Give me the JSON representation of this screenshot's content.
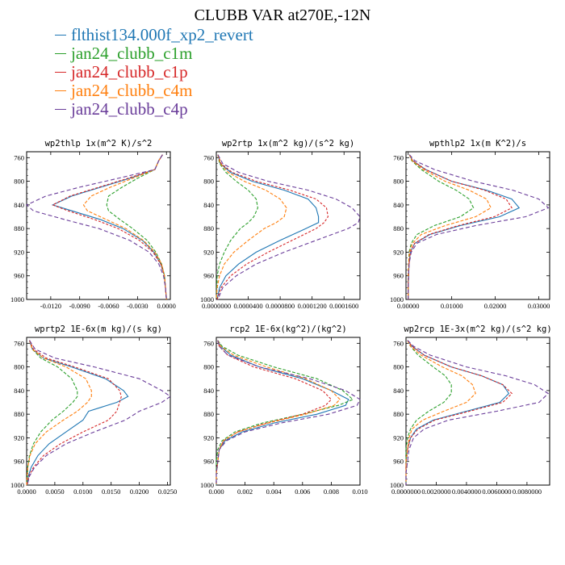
{
  "title": "CLUBB VAR at270E,-12N",
  "legend": [
    {
      "label": "flthist134.000f_xp2_revert",
      "color": "#1f77b4",
      "dash": ""
    },
    {
      "label": "jan24_clubb_c1m",
      "color": "#2ca02c",
      "dash": "4,2"
    },
    {
      "label": "jan24_clubb_c1p",
      "color": "#d62728",
      "dash": "3,2"
    },
    {
      "label": "jan24_clubb_c4m",
      "color": "#ff7f0e",
      "dash": "4,2"
    },
    {
      "label": "jan24_clubb_c4p",
      "color": "#6a3d9a",
      "dash": "5,3"
    }
  ],
  "chart_data": [
    {
      "type": "line",
      "title": "wp2thlp   1x(m^2 K)/s^2",
      "xlim": [
        -0.0145,
        0.0004
      ],
      "ylim": [
        1000,
        750
      ],
      "xticks": [
        -0.012,
        -0.009,
        -0.006,
        -0.003,
        0.0
      ],
      "xtick_labels": [
        "-0.0120",
        "-0.0090",
        "-0.0060",
        "-0.0030",
        "0.0000"
      ],
      "yticks": [
        760,
        800,
        840,
        880,
        920,
        960,
        1000
      ],
      "y": [
        755,
        765,
        780,
        795,
        810,
        825,
        840,
        850,
        865,
        880,
        900,
        920,
        940,
        960,
        980,
        1000
      ],
      "series": [
        {
          "name": "flthist134.000f_xp2_revert",
          "x": [
            -0.0004,
            -0.0008,
            -0.0012,
            -0.0038,
            -0.0068,
            -0.0098,
            -0.0118,
            -0.0098,
            -0.0068,
            -0.0045,
            -0.0025,
            -0.0013,
            -0.0006,
            -0.0002,
            -0.0001,
            0.0
          ]
        },
        {
          "name": "jan24_clubb_c1m",
          "x": [
            -0.0004,
            -0.0008,
            -0.0012,
            -0.003,
            -0.0046,
            -0.006,
            -0.0062,
            -0.006,
            -0.0048,
            -0.0035,
            -0.002,
            -0.0011,
            -0.0005,
            -0.0002,
            -0.0001,
            0.0
          ]
        },
        {
          "name": "jan24_clubb_c1p",
          "x": [
            -0.0004,
            -0.0008,
            -0.0012,
            -0.004,
            -0.007,
            -0.01,
            -0.0118,
            -0.0102,
            -0.0074,
            -0.005,
            -0.0028,
            -0.0014,
            -0.0006,
            -0.0002,
            -0.0001,
            0.0
          ]
        },
        {
          "name": "jan24_clubb_c4m",
          "x": [
            -0.0004,
            -0.0008,
            -0.0012,
            -0.0035,
            -0.0058,
            -0.0078,
            -0.0086,
            -0.0082,
            -0.0062,
            -0.0042,
            -0.0024,
            -0.0012,
            -0.0005,
            -0.0002,
            -0.0001,
            0.0
          ]
        },
        {
          "name": "jan24_clubb_c4p",
          "x": [
            -0.0004,
            -0.0008,
            -0.0012,
            -0.005,
            -0.009,
            -0.0125,
            -0.0145,
            -0.0138,
            -0.0105,
            -0.007,
            -0.0038,
            -0.0018,
            -0.0008,
            -0.0003,
            -0.0001,
            0.0
          ]
        }
      ]
    },
    {
      "type": "line",
      "title": "wp2rtp   1x(m^2 kg)/(s^2 kg)",
      "xlim": [
        0,
        0.00018
      ],
      "ylim": [
        1000,
        750
      ],
      "xticks": [
        0,
        4e-05,
        8e-05,
        0.00012,
        0.00016
      ],
      "xtick_labels": [
        "0.0000000",
        "0.0000400",
        "0.0000800",
        "0.0001200",
        "0.0001600"
      ],
      "yticks": [
        760,
        800,
        840,
        880,
        920,
        960,
        1000
      ],
      "y": [
        755,
        770,
        785,
        800,
        815,
        830,
        845,
        860,
        870,
        880,
        900,
        920,
        940,
        960,
        980,
        1000
      ],
      "series": [
        {
          "name": "flthist134.000f_xp2_revert",
          "x": [
            2e-06,
            5e-06,
            1.8e-05,
            4.5e-05,
            8.5e-05,
            0.000115,
            0.000125,
            0.000128,
            0.000128,
            0.000112,
            8e-05,
            5e-05,
            2.8e-05,
            1.2e-05,
            4e-06,
            1e-06
          ]
        },
        {
          "name": "jan24_clubb_c1m",
          "x": [
            2e-06,
            4e-06,
            1.2e-05,
            2.5e-05,
            4e-05,
            5e-05,
            5.2e-05,
            4.7e-05,
            4e-05,
            3e-05,
            1.8e-05,
            1e-05,
            4e-06,
            1e-06,
            5e-07,
            0.0
          ]
        },
        {
          "name": "jan24_clubb_c1p",
          "x": [
            2e-06,
            6e-06,
            2e-05,
            5e-05,
            9.2e-05,
            0.000125,
            0.000138,
            0.00014,
            0.000135,
            0.000125,
            9.5e-05,
            6.5e-05,
            3.8e-05,
            1.8e-05,
            6e-06,
            1e-06
          ]
        },
        {
          "name": "jan24_clubb_c4m",
          "x": [
            2e-06,
            5e-06,
            1.5e-05,
            3.5e-05,
            6.2e-05,
            8e-05,
            8.8e-05,
            8.5e-05,
            7.5e-05,
            6e-05,
            4e-05,
            2.2e-05,
            1e-05,
            4e-06,
            1e-06,
            0.0
          ]
        },
        {
          "name": "jan24_clubb_c4p",
          "x": [
            2e-06,
            8e-06,
            2.8e-05,
            6.5e-05,
            0.000115,
            0.00015,
            0.00017,
            0.00018,
            0.000178,
            0.000165,
            0.000125,
            8.5e-05,
            5e-05,
            2.5e-05,
            8e-06,
            2e-06
          ]
        }
      ]
    },
    {
      "type": "line",
      "title": "wpthlp2   1x(m K^2)/s",
      "xlim": [
        -0.0005,
        0.0325
      ],
      "ylim": [
        1000,
        750
      ],
      "xticks": [
        0,
        0.01,
        0.02,
        0.03
      ],
      "xtick_labels": [
        "0.00000",
        "0.01000",
        "0.02000",
        "0.03000"
      ],
      "yticks": [
        760,
        800,
        840,
        880,
        920,
        960,
        1000
      ],
      "y": [
        755,
        765,
        780,
        800,
        815,
        830,
        845,
        860,
        875,
        890,
        905,
        920,
        940,
        960,
        980,
        1000
      ],
      "series": [
        {
          "name": "flthist134.000f_xp2_revert",
          "x": [
            0.0003,
            0.001,
            0.004,
            0.01,
            0.018,
            0.0238,
            0.0255,
            0.021,
            0.012,
            0.005,
            0.0015,
            0.0005,
            0.0002,
            0.0001,
            0.0,
            0.0
          ]
        },
        {
          "name": "jan24_clubb_c1m",
          "x": [
            0.0003,
            0.0008,
            0.003,
            0.007,
            0.011,
            0.014,
            0.015,
            0.012,
            0.006,
            0.002,
            0.0007,
            0.0002,
            0.0001,
            0.0,
            0.0,
            0.0
          ]
        },
        {
          "name": "jan24_clubb_c1p",
          "x": [
            0.0003,
            0.001,
            0.004,
            0.01,
            0.0175,
            0.0225,
            0.0238,
            0.0198,
            0.0115,
            0.0048,
            0.0015,
            0.0005,
            0.0002,
            0.0001,
            0.0,
            0.0
          ]
        },
        {
          "name": "jan24_clubb_c4m",
          "x": [
            0.0003,
            0.0009,
            0.0035,
            0.0085,
            0.014,
            0.018,
            0.019,
            0.0155,
            0.0085,
            0.003,
            0.001,
            0.0003,
            0.0001,
            0.0,
            0.0,
            0.0
          ]
        },
        {
          "name": "jan24_clubb_c4p",
          "x": [
            0.0003,
            0.0015,
            0.006,
            0.015,
            0.024,
            0.03,
            0.0322,
            0.027,
            0.0155,
            0.0065,
            0.002,
            0.0007,
            0.0002,
            0.0001,
            0.0,
            0.0
          ]
        }
      ]
    },
    {
      "type": "line",
      "title": "wprtp2   1E-6x(m kg)/(s kg)",
      "xlim": [
        0,
        0.0255
      ],
      "ylim": [
        1000,
        750
      ],
      "xticks": [
        0,
        0.005,
        0.01,
        0.015,
        0.02,
        0.025
      ],
      "xtick_labels": [
        "0.0000",
        "0.0050",
        "0.0100",
        "0.0150",
        "0.0200",
        "0.0250"
      ],
      "yticks": [
        760,
        800,
        840,
        880,
        920,
        960,
        1000
      ],
      "y": [
        755,
        770,
        785,
        800,
        820,
        840,
        850,
        860,
        875,
        890,
        910,
        930,
        950,
        970,
        985,
        1000
      ],
      "series": [
        {
          "name": "flthist134.000f_xp2_revert",
          "x": [
            0.0005,
            0.001,
            0.003,
            0.008,
            0.014,
            0.0172,
            0.018,
            0.016,
            0.011,
            0.01,
            0.007,
            0.004,
            0.002,
            0.0008,
            0.0003,
            0.0001
          ]
        },
        {
          "name": "jan24_clubb_c1m",
          "x": [
            0.0005,
            0.001,
            0.0025,
            0.0055,
            0.008,
            0.009,
            0.009,
            0.0082,
            0.0065,
            0.0045,
            0.0025,
            0.0012,
            0.0005,
            0.0002,
            0.0001,
            0.0
          ]
        },
        {
          "name": "jan24_clubb_c1p",
          "x": [
            0.0005,
            0.0012,
            0.0035,
            0.0085,
            0.0145,
            0.0165,
            0.0168,
            0.0165,
            0.016,
            0.0145,
            0.01,
            0.006,
            0.003,
            0.0012,
            0.0004,
            0.0001
          ]
        },
        {
          "name": "jan24_clubb_c4m",
          "x": [
            0.0005,
            0.001,
            0.003,
            0.007,
            0.0105,
            0.0115,
            0.0115,
            0.0108,
            0.009,
            0.0065,
            0.0035,
            0.0015,
            0.0006,
            0.0002,
            0.0001,
            0.0
          ]
        },
        {
          "name": "jan24_clubb_c4p",
          "x": [
            0.0005,
            0.0015,
            0.005,
            0.012,
            0.02,
            0.024,
            0.0255,
            0.024,
            0.02,
            0.0175,
            0.012,
            0.007,
            0.0035,
            0.0014,
            0.0005,
            0.0001
          ]
        }
      ]
    },
    {
      "type": "line",
      "title": "rcp2   1E-6x(kg^2)/(kg^2)",
      "xlim": [
        0,
        0.01
      ],
      "ylim": [
        1000,
        750
      ],
      "xticks": [
        0,
        0.002,
        0.004,
        0.006,
        0.008,
        0.01
      ],
      "xtick_labels": [
        "0.000",
        "0.002",
        "0.004",
        "0.006",
        "0.008",
        "0.010"
      ],
      "yticks": [
        760,
        800,
        840,
        880,
        920,
        960,
        1000
      ],
      "y": [
        755,
        765,
        780,
        800,
        820,
        840,
        855,
        865,
        880,
        895,
        910,
        925,
        940,
        960,
        980,
        1000
      ],
      "series": [
        {
          "name": "flthist134.000f_xp2_revert",
          "x": [
            0.0001,
            0.0003,
            0.001,
            0.003,
            0.006,
            0.008,
            0.0092,
            0.009,
            0.007,
            0.004,
            0.0018,
            0.0006,
            0.0002,
            0.0001,
            0.0,
            0.0
          ]
        },
        {
          "name": "jan24_clubb_c1m",
          "x": [
            0.0001,
            0.0004,
            0.0015,
            0.004,
            0.007,
            0.0088,
            0.0095,
            0.0085,
            0.006,
            0.0032,
            0.0013,
            0.0004,
            0.0001,
            0.0,
            0.0,
            0.0
          ]
        },
        {
          "name": "jan24_clubb_c1p",
          "x": [
            0.0001,
            0.0002,
            0.0008,
            0.0026,
            0.0055,
            0.0074,
            0.008,
            0.0076,
            0.006,
            0.0035,
            0.0015,
            0.0005,
            0.0002,
            0.0001,
            0.0,
            0.0
          ]
        },
        {
          "name": "jan24_clubb_c4m",
          "x": [
            0.0001,
            0.0003,
            0.0012,
            0.0035,
            0.0062,
            0.008,
            0.0086,
            0.0082,
            0.0062,
            0.0036,
            0.0015,
            0.0005,
            0.0002,
            0.0001,
            0.0,
            0.0
          ]
        },
        {
          "name": "jan24_clubb_c4p",
          "x": [
            0.0001,
            0.0002,
            0.0008,
            0.003,
            0.0065,
            0.009,
            0.01,
            0.0098,
            0.0078,
            0.0045,
            0.002,
            0.0007,
            0.0002,
            0.0001,
            0.0,
            0.0
          ]
        }
      ]
    },
    {
      "type": "line",
      "title": "wp2rcp   1E-3x(m^2 kg)/(s^2 kg)",
      "xlim": [
        0,
        0.0095
      ],
      "ylim": [
        1000,
        750
      ],
      "xticks": [
        0,
        0.002,
        0.004,
        0.006,
        0.008
      ],
      "xtick_labels": [
        "0.0000000",
        "0.0020000",
        "0.0040000",
        "0.0060000",
        "0.0080000"
      ],
      "yticks": [
        760,
        800,
        840,
        880,
        920,
        960,
        1000
      ],
      "y": [
        755,
        765,
        780,
        800,
        815,
        830,
        845,
        860,
        875,
        890,
        905,
        920,
        940,
        960,
        980,
        1000
      ],
      "series": [
        {
          "name": "flthist134.000f_xp2_revert",
          "x": [
            0.0001,
            0.0004,
            0.0012,
            0.003,
            0.005,
            0.0064,
            0.0068,
            0.0062,
            0.004,
            0.0018,
            0.0007,
            0.0003,
            0.0001,
            0.0,
            0.0,
            0.0
          ]
        },
        {
          "name": "jan24_clubb_c1m",
          "x": [
            0.0001,
            0.0003,
            0.0008,
            0.0018,
            0.0026,
            0.003,
            0.003,
            0.0025,
            0.0015,
            0.0007,
            0.0003,
            0.0001,
            0.0,
            0.0,
            0.0,
            0.0
          ]
        },
        {
          "name": "jan24_clubb_c1p",
          "x": [
            0.0001,
            0.0004,
            0.0012,
            0.003,
            0.005,
            0.0064,
            0.007,
            0.0064,
            0.0042,
            0.0019,
            0.0008,
            0.0003,
            0.0001,
            0.0,
            0.0,
            0.0
          ]
        },
        {
          "name": "jan24_clubb_c4m",
          "x": [
            0.0001,
            0.0003,
            0.001,
            0.0024,
            0.0037,
            0.0044,
            0.0046,
            0.004,
            0.0025,
            0.0011,
            0.0004,
            0.0002,
            0.0001,
            0.0,
            0.0,
            0.0
          ]
        },
        {
          "name": "jan24_clubb_c4p",
          "x": [
            0.0001,
            0.0005,
            0.0016,
            0.004,
            0.0066,
            0.0085,
            0.0094,
            0.0088,
            0.006,
            0.0028,
            0.0012,
            0.0005,
            0.0002,
            0.0001,
            0.0,
            0.0
          ]
        }
      ]
    }
  ]
}
